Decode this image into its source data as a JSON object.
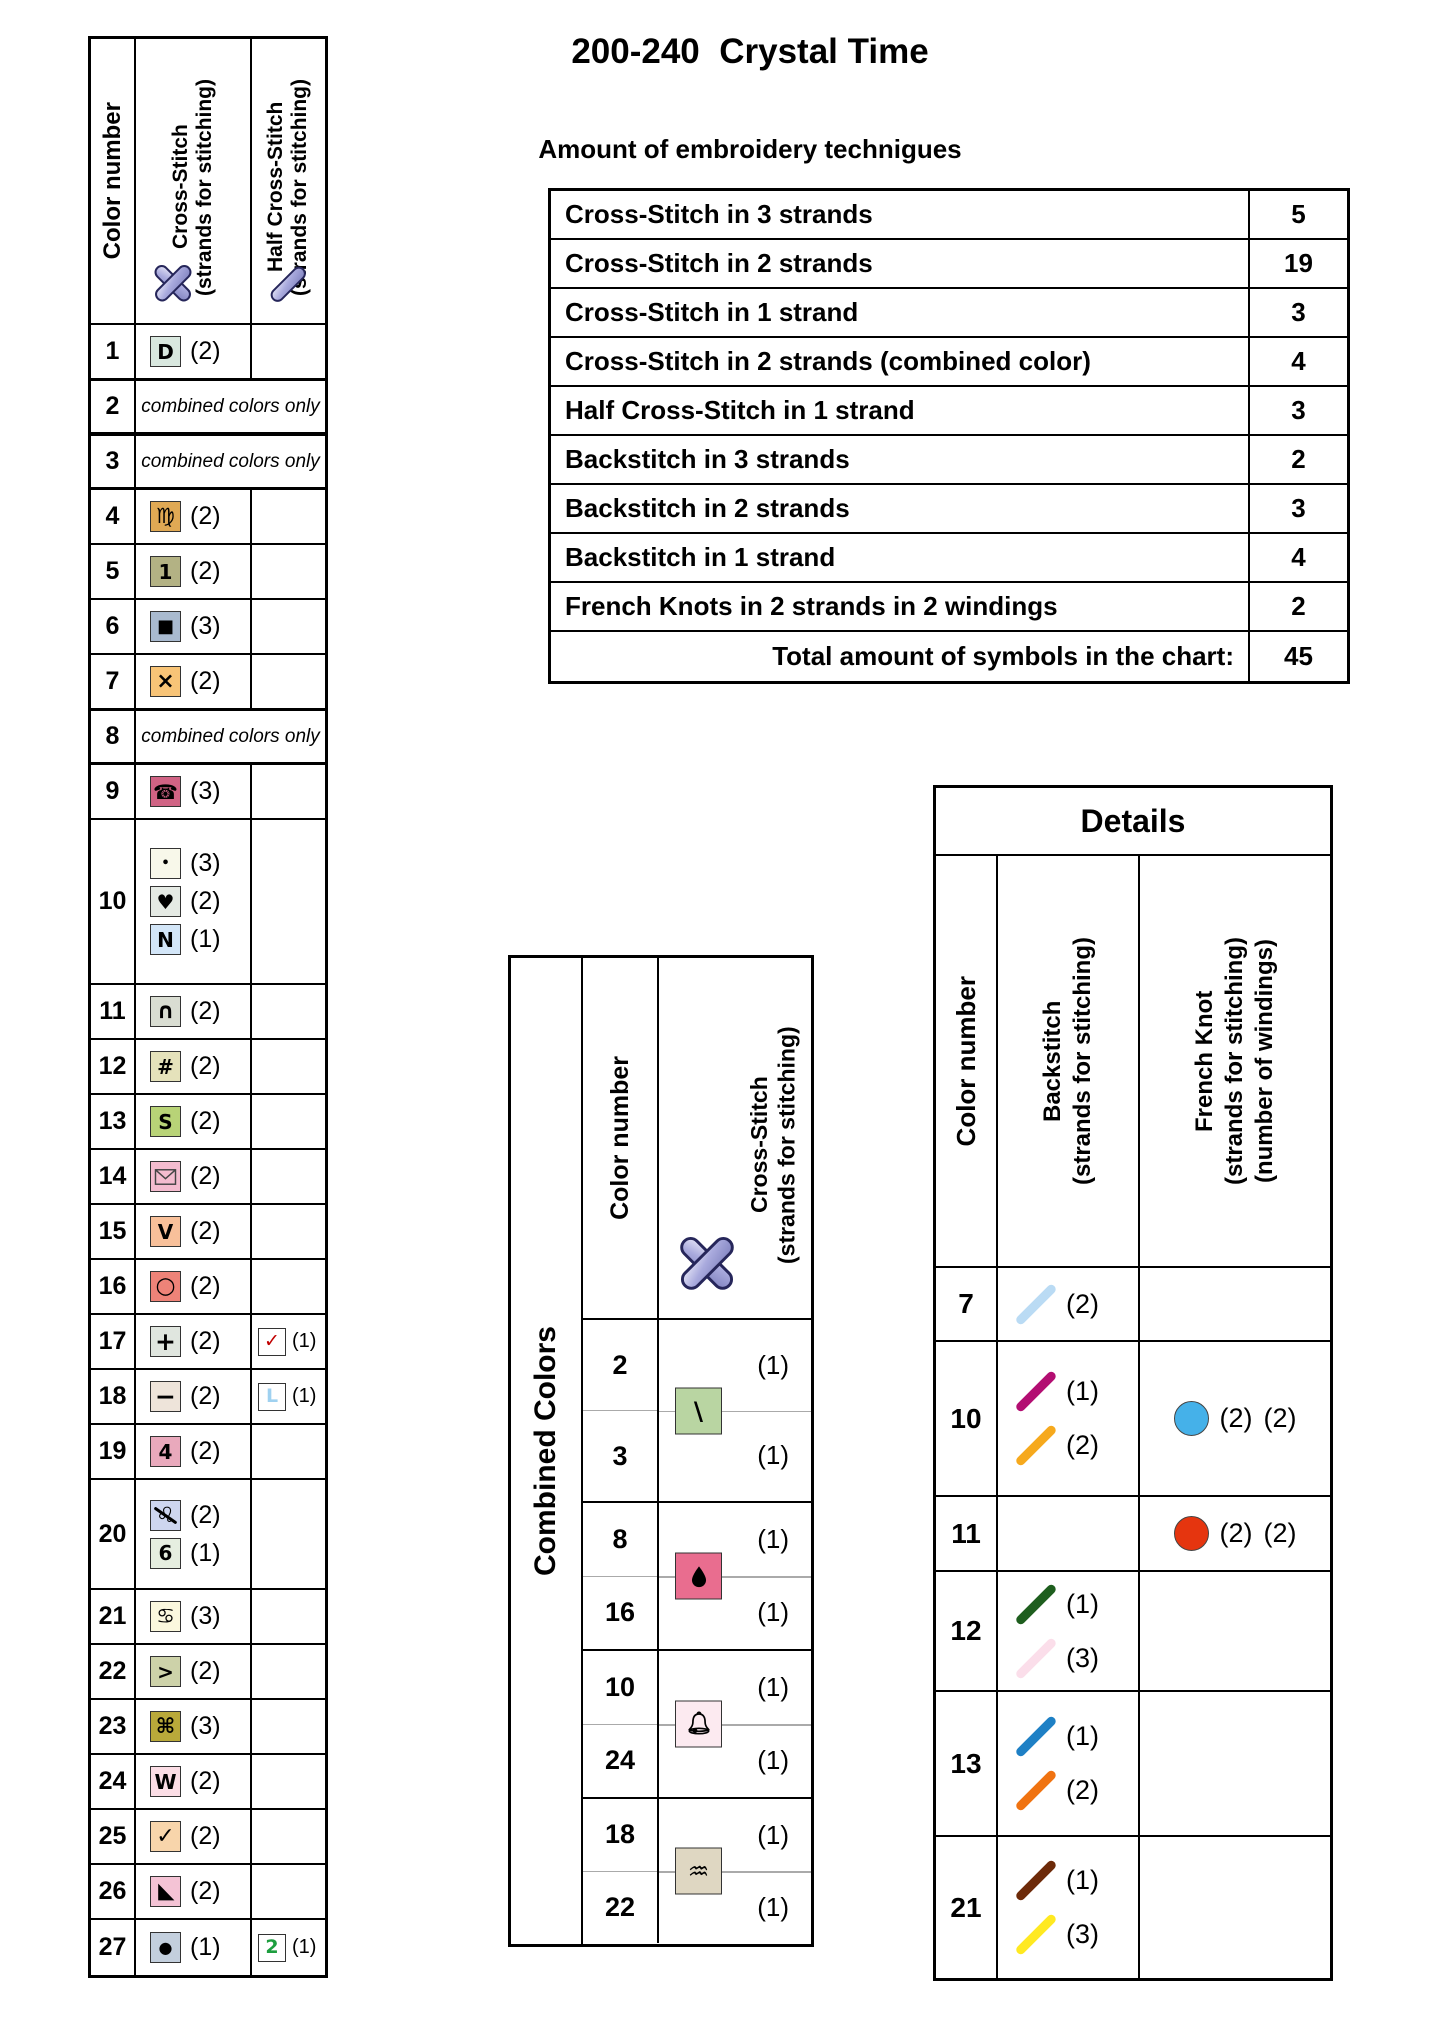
{
  "title": "200-240  Crystal Time",
  "techniques": {
    "subtitle": "Amount of embroidery technigues",
    "rows": [
      {
        "label": "Cross-Stitch in 3 strands",
        "count": "5"
      },
      {
        "label": "Cross-Stitch in 2 strands",
        "count": "19"
      },
      {
        "label": "Cross-Stitch in 1 strand",
        "count": "3"
      },
      {
        "label": "Cross-Stitch in 2 strands (combined color)",
        "count": "4"
      },
      {
        "label": "Half Cross-Stitch in 1 strand",
        "count": "3"
      },
      {
        "label": "Backstitch in 3 strands",
        "count": "2"
      },
      {
        "label": "Backstitch in 2 strands",
        "count": "3"
      },
      {
        "label": "Backstitch in 1 strand",
        "count": "4"
      },
      {
        "label": "French Knots in 2 strands in 2 windings",
        "count": "2"
      },
      {
        "label": "Total amount of symbols in the chart:",
        "count": "45",
        "total": true
      }
    ]
  },
  "symbols_key": {
    "headers": {
      "col1": "Color number",
      "col2_line1": "Cross-Stitch",
      "col2_line2": "(strands for stitching)",
      "col3_line1": "Half Cross-Stitch",
      "col3_line2": "(strands for stitching)",
      "cross_icon": "cross-stitch-icon",
      "half_icon": "half-cross-stitch-icon"
    },
    "combined_note": "combined colors only",
    "rows": [
      {
        "num": "1",
        "cross": [
          {
            "glyph": "D",
            "bg": "#d9e8df",
            "strands": "(2)"
          }
        ]
      },
      {
        "num": "2",
        "combined": true
      },
      {
        "num": "3",
        "combined": true
      },
      {
        "num": "4",
        "cross": [
          {
            "glyph": "♍",
            "bg": "#e0a954",
            "strands": "(2)",
            "gsize": 21
          }
        ]
      },
      {
        "num": "5",
        "cross": [
          {
            "glyph": "1",
            "bg": "#b3b284",
            "strands": "(2)"
          }
        ]
      },
      {
        "num": "6",
        "cross": [
          {
            "glyph": "■",
            "bg": "#a9bacf",
            "strands": "(3)",
            "gsize": 18
          }
        ]
      },
      {
        "num": "7",
        "cross": [
          {
            "glyph": "×",
            "bg": "#f8c477",
            "strands": "(2)",
            "gsize": 22
          }
        ]
      },
      {
        "num": "8",
        "combined": true
      },
      {
        "num": "9",
        "cross": [
          {
            "glyph": "☎",
            "bg": "#d06384",
            "strands": "(3)",
            "gsize": 20
          }
        ]
      },
      {
        "num": "10",
        "cross": [
          {
            "glyph": "•",
            "bg": "#f8f8ea",
            "strands": "(3)",
            "gsize": 13
          },
          {
            "glyph": "♥",
            "bg": "#e5eae4",
            "strands": "(2)",
            "gsize": 20
          },
          {
            "glyph": "N",
            "bg": "#d3e6f8",
            "strands": "(1)"
          }
        ]
      },
      {
        "num": "11",
        "cross": [
          {
            "glyph": "∩",
            "bg": "#d9ddd2",
            "strands": "(2)",
            "gsize": 22
          }
        ]
      },
      {
        "num": "12",
        "cross": [
          {
            "glyph": "#",
            "bg": "#e5e2bb",
            "strands": "(2)"
          }
        ]
      },
      {
        "num": "13",
        "cross": [
          {
            "glyph": "S",
            "bg": "#b8d377",
            "strands": "(2)"
          }
        ]
      },
      {
        "num": "14",
        "cross": [
          {
            "shape": "envelope",
            "icon": "envelope-icon",
            "bg": "#f4bccf",
            "strands": "(2)"
          }
        ]
      },
      {
        "num": "15",
        "cross": [
          {
            "glyph": "V",
            "bg": "#f8c09a",
            "strands": "(2)"
          }
        ]
      },
      {
        "num": "16",
        "cross": [
          {
            "glyph": "○",
            "bg": "#ee8378",
            "strands": "(2)",
            "gsize": 23
          }
        ]
      },
      {
        "num": "17",
        "cross": [
          {
            "glyph": "+",
            "bg": "#e0e6df",
            "strands": "(2)",
            "gsize": 25
          }
        ],
        "half": {
          "glyph": "✓",
          "color": "#c00000",
          "strands": "(1)"
        }
      },
      {
        "num": "18",
        "cross": [
          {
            "glyph": "−",
            "bg": "#eee4da",
            "strands": "(2)",
            "gsize": 25
          }
        ],
        "half": {
          "glyph": "L",
          "color": "#9fd1f0",
          "strands": "(1)"
        }
      },
      {
        "num": "19",
        "cross": [
          {
            "glyph": "4",
            "bg": "#e9a9bc",
            "strands": "(2)"
          }
        ]
      },
      {
        "num": "20",
        "cross": [
          {
            "glyph": "♌",
            "bg": "#ced6ef",
            "strands": "(2)",
            "gsize": 21,
            "slash": true
          },
          {
            "glyph": "6",
            "bg": "#e6eee0",
            "strands": "(1)"
          }
        ]
      },
      {
        "num": "21",
        "cross": [
          {
            "glyph": "♋",
            "bg": "#fbf8de",
            "strands": "(3)",
            "gsize": 21
          }
        ]
      },
      {
        "num": "22",
        "cross": [
          {
            "glyph": ">",
            "bg": "#cdd2a9",
            "strands": "(2)"
          }
        ]
      },
      {
        "num": "23",
        "cross": [
          {
            "glyph": "⌘",
            "bg": "#b9a93a",
            "strands": "(3)",
            "gsize": 21
          }
        ]
      },
      {
        "num": "24",
        "cross": [
          {
            "glyph": "W",
            "bg": "#fbdde5",
            "strands": "(2)"
          }
        ]
      },
      {
        "num": "25",
        "cross": [
          {
            "glyph": "✓",
            "bg": "#f8d5ab",
            "strands": "(2)",
            "gsize": 22
          }
        ]
      },
      {
        "num": "26",
        "cross": [
          {
            "shape": "triangle",
            "icon": "triangle-icon",
            "bg": "#f4c3d5",
            "strands": "(2)"
          }
        ]
      },
      {
        "num": "27",
        "cross": [
          {
            "glyph": "●",
            "bg": "#c3cfdd",
            "strands": "(1)",
            "gsize": 16
          }
        ],
        "half": {
          "glyph": "2",
          "color": "#1d9e3f",
          "strands": "(1)"
        }
      }
    ]
  },
  "combined_colors": {
    "label": "Combined Colors",
    "headers": {
      "col1": "Color number",
      "col2_line1": "Cross-Stitch",
      "col2_line2": "(strands for stitching)",
      "cross_icon": "cross-stitch-icon"
    },
    "groups": [
      {
        "nums": [
          "2",
          "3"
        ],
        "strands": [
          "(1)",
          "(1)"
        ],
        "symbol": {
          "glyph": "\\",
          "bg": "#b9d5a2"
        }
      },
      {
        "nums": [
          "8",
          "16"
        ],
        "strands": [
          "(1)",
          "(1)"
        ],
        "symbol": {
          "shape": "drop",
          "icon": "drop-icon",
          "bg": "#e96d8f"
        }
      },
      {
        "nums": [
          "10",
          "24"
        ],
        "strands": [
          "(1)",
          "(1)"
        ],
        "symbol": {
          "shape": "bell",
          "icon": "bell-icon",
          "bg": "#fceaf0"
        }
      },
      {
        "nums": [
          "18",
          "22"
        ],
        "strands": [
          "(1)",
          "(1)"
        ],
        "symbol": {
          "glyph": "♒",
          "bg": "#dfd7c2",
          "gsize": 24
        }
      }
    ]
  },
  "details": {
    "title": "Details",
    "headers": {
      "col1": "Color number",
      "col2_line1": "Backstitch",
      "col2_line2": "(strands for stitching)",
      "col3_line1": "French Knot",
      "col3_line2": "(strands for stitching)",
      "col3_line3": "(number of windings)"
    },
    "rows": [
      {
        "num": "7",
        "backstitch": [
          {
            "color": "#badbf4",
            "strands": "(2)"
          }
        ]
      },
      {
        "num": "10",
        "backstitch": [
          {
            "color": "#b30e72",
            "strands": "(1)"
          },
          {
            "color": "#f6a91d",
            "strands": "(2)"
          }
        ],
        "french": {
          "color": "#45b1e9",
          "strands": "(2)",
          "windings": "(2)"
        }
      },
      {
        "num": "11",
        "backstitch": [],
        "french": {
          "color": "#e5350f",
          "strands": "(2)",
          "windings": "(2)"
        }
      },
      {
        "num": "12",
        "backstitch": [
          {
            "color": "#1e5e1e",
            "strands": "(1)"
          },
          {
            "color": "#fbdeea",
            "strands": "(3)"
          }
        ]
      },
      {
        "num": "13",
        "backstitch": [
          {
            "color": "#1e80c5",
            "strands": "(1)"
          },
          {
            "color": "#f07311",
            "strands": "(2)"
          }
        ]
      },
      {
        "num": "21",
        "backstitch": [
          {
            "color": "#6d2a09",
            "strands": "(1)"
          },
          {
            "color": "#ffe921",
            "strands": "(3)"
          }
        ]
      }
    ]
  },
  "icon_colors": {
    "x_rod_light": "#e6e6f7",
    "x_rod_mid": "#a9aadd",
    "x_rod_dark": "#8183c0",
    "x_rod_stroke": "#26265a"
  }
}
